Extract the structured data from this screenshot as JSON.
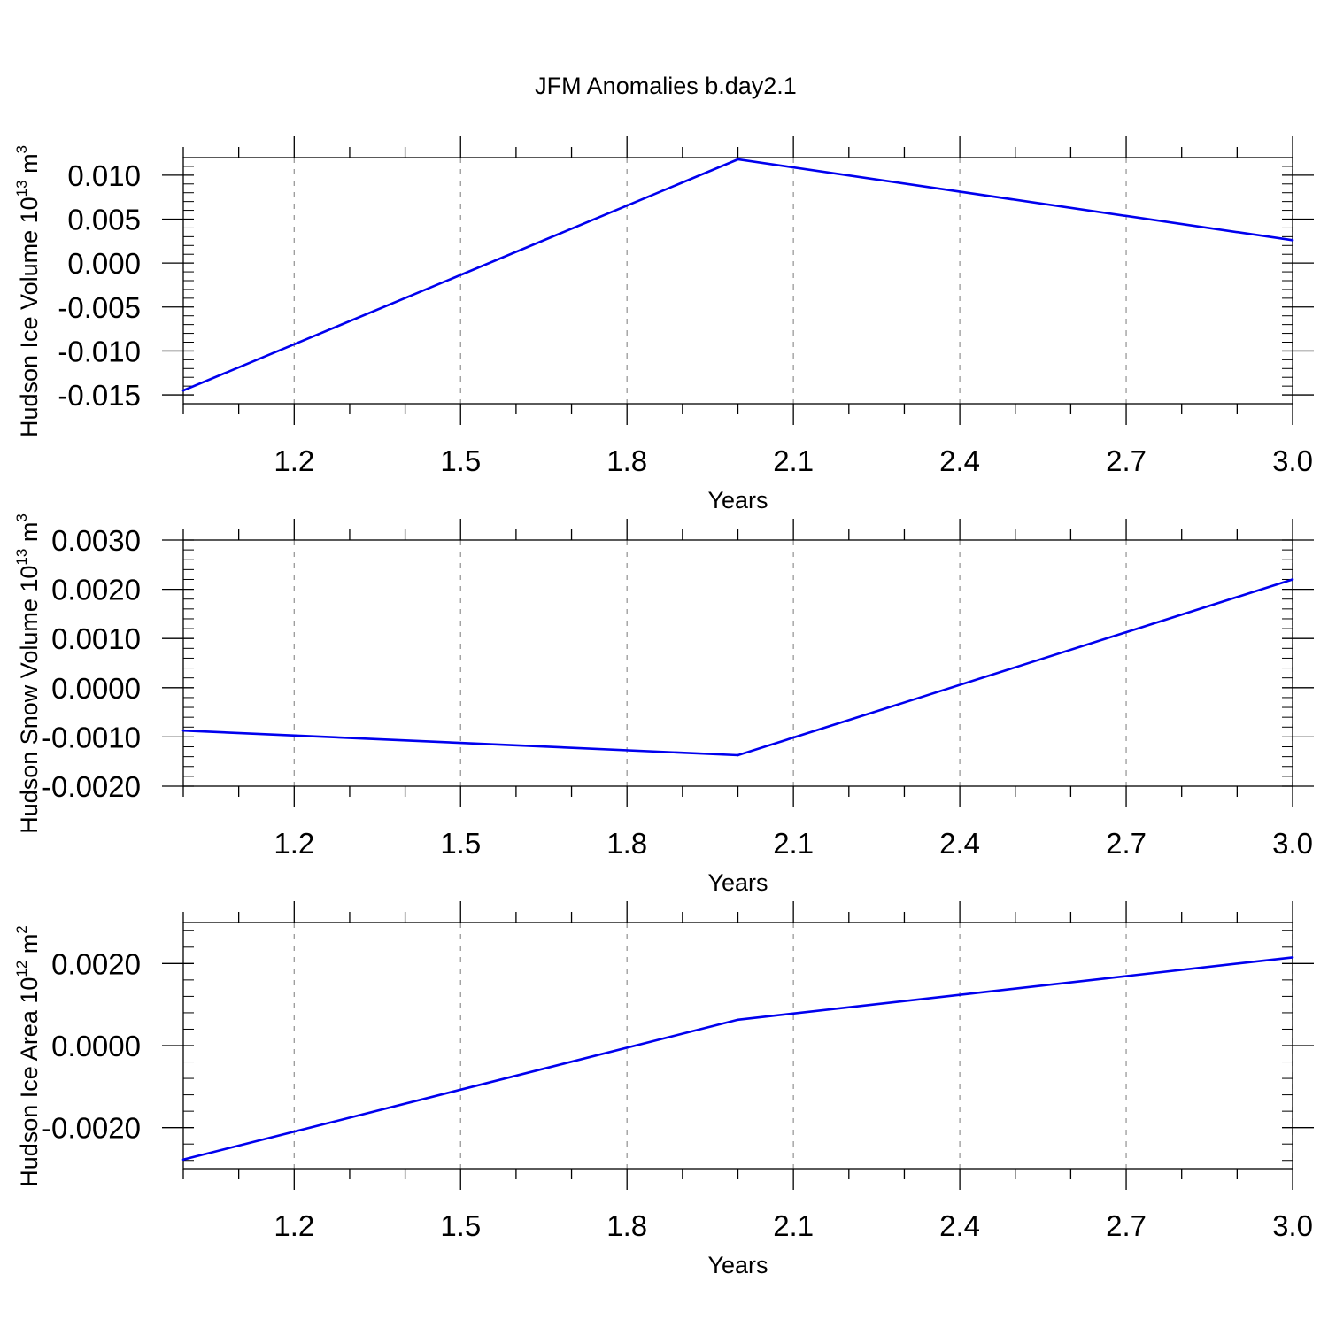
{
  "title": "JFM Anomalies b.day2.1",
  "colors": {
    "line": "#0000ee",
    "axis": "#000000",
    "grid": "#999999"
  },
  "chart_data": [
    {
      "type": "line",
      "xlabel": "Years",
      "ylabel": "Hudson Ice Volume 10",
      "ylabel_exp": "13",
      "ylabel_unit": " m",
      "ylabel_unit_exp": "3",
      "xlim": [
        1.0,
        3.0
      ],
      "ylim": [
        -0.016,
        0.012
      ],
      "xticks": [
        1.2,
        1.5,
        1.8,
        2.1,
        2.4,
        2.7,
        3.0
      ],
      "xtick_labels": [
        "1.2",
        "1.5",
        "1.8",
        "2.1",
        "2.4",
        "2.7",
        "3.0"
      ],
      "yticks": [
        -0.015,
        -0.01,
        -0.005,
        0.0,
        0.005,
        0.01
      ],
      "ytick_labels": [
        "-0.015",
        "-0.010",
        "-0.005",
        "0.000",
        "0.005",
        "0.010"
      ],
      "grid": "x-dashed",
      "x": [
        1.0,
        2.0,
        3.0
      ],
      "y": [
        -0.0145,
        0.0118,
        0.0026
      ]
    },
    {
      "type": "line",
      "xlabel": "Years",
      "ylabel": "Hudson Snow Volume 10",
      "ylabel_exp": "13",
      "ylabel_unit": " m",
      "ylabel_unit_exp": "3",
      "xlim": [
        1.0,
        3.0
      ],
      "ylim": [
        -0.002,
        0.003
      ],
      "xticks": [
        1.2,
        1.5,
        1.8,
        2.1,
        2.4,
        2.7,
        3.0
      ],
      "xtick_labels": [
        "1.2",
        "1.5",
        "1.8",
        "2.1",
        "2.4",
        "2.7",
        "3.0"
      ],
      "yticks": [
        -0.002,
        -0.001,
        0.0,
        0.001,
        0.002,
        0.003
      ],
      "ytick_labels": [
        "-0.0020",
        "-0.0010",
        "0.0000",
        "0.0010",
        "0.0020",
        "0.0030"
      ],
      "grid": "x-dashed",
      "x": [
        1.0,
        2.0,
        3.0
      ],
      "y": [
        -0.00087,
        -0.00137,
        0.0022
      ]
    },
    {
      "type": "line",
      "xlabel": "Years",
      "ylabel": "Hudson Ice Area 10",
      "ylabel_exp": "12",
      "ylabel_unit": " m",
      "ylabel_unit_exp": "2",
      "xlim": [
        1.0,
        3.0
      ],
      "ylim": [
        -0.003,
        0.003
      ],
      "xticks": [
        1.2,
        1.5,
        1.8,
        2.1,
        2.4,
        2.7,
        3.0
      ],
      "xtick_labels": [
        "1.2",
        "1.5",
        "1.8",
        "2.1",
        "2.4",
        "2.7",
        "3.0"
      ],
      "yticks": [
        -0.002,
        0.0,
        0.002
      ],
      "ytick_labels": [
        "-0.0020",
        "0.0000",
        "0.0020"
      ],
      "grid": "x-dashed",
      "x": [
        1.0,
        2.0,
        3.0
      ],
      "y": [
        -0.00278,
        0.00063,
        0.00215
      ]
    }
  ]
}
